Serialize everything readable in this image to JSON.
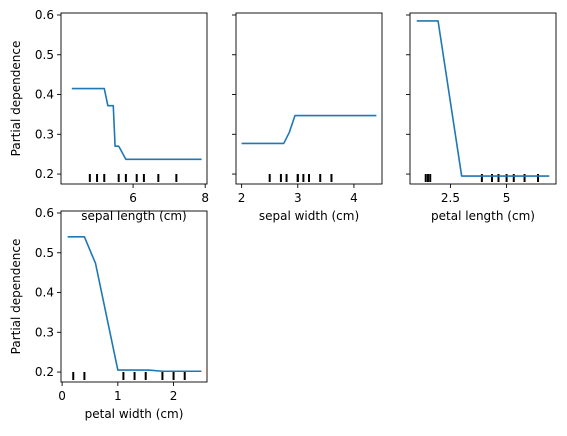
{
  "figure": {
    "line_color": "#1f77b4",
    "axis_color": "#000000",
    "background": "#ffffff"
  },
  "chart_data": [
    {
      "type": "line",
      "xlabel": "sepal length (cm)",
      "ylabel": "Partial dependence",
      "xlim": [
        4.0,
        8.05
      ],
      "ylim": [
        0.175,
        0.605
      ],
      "xticks": [
        6,
        8
      ],
      "yticks": [
        0.2,
        0.3,
        0.4,
        0.5,
        0.6
      ],
      "show_ylabel": true,
      "show_yticklabels": true,
      "x": [
        4.3,
        5.2,
        5.3,
        5.45,
        5.5,
        5.6,
        5.65,
        5.8,
        7.9
      ],
      "y": [
        0.415,
        0.415,
        0.372,
        0.372,
        0.27,
        0.27,
        0.262,
        0.237,
        0.237
      ],
      "deciles": [
        4.8,
        5.0,
        5.2,
        5.6,
        5.8,
        6.1,
        6.3,
        6.7,
        7.2
      ]
    },
    {
      "type": "line",
      "xlabel": "sepal width (cm)",
      "ylabel": "",
      "xlim": [
        1.9,
        4.5
      ],
      "ylim": [
        0.175,
        0.605
      ],
      "xticks": [
        2,
        3,
        4
      ],
      "yticks": [
        0.2,
        0.3,
        0.4,
        0.5,
        0.6
      ],
      "show_ylabel": false,
      "show_yticklabels": false,
      "x": [
        2.0,
        2.75,
        2.85,
        2.95,
        4.4
      ],
      "y": [
        0.277,
        0.277,
        0.305,
        0.347,
        0.347
      ],
      "deciles": [
        2.5,
        2.7,
        2.8,
        3.0,
        3.0,
        3.1,
        3.2,
        3.4,
        3.6
      ]
    },
    {
      "type": "line",
      "xlabel": "petal length (cm)",
      "ylabel": "",
      "xlim": [
        0.7,
        7.2
      ],
      "ylim": [
        0.175,
        0.605
      ],
      "xticks": [
        2.5,
        5.0
      ],
      "yticks": [
        0.2,
        0.3,
        0.4,
        0.5,
        0.6
      ],
      "show_ylabel": false,
      "show_yticklabels": false,
      "x": [
        1.0,
        1.95,
        3.0,
        6.9
      ],
      "y": [
        0.585,
        0.585,
        0.195,
        0.195
      ],
      "deciles": [
        1.4,
        1.5,
        1.6,
        3.9,
        4.35,
        4.64,
        5.0,
        5.32,
        5.8,
        6.4
      ]
    },
    {
      "type": "line",
      "xlabel": "petal width (cm)",
      "ylabel": "Partial dependence",
      "xlim": [
        -0.02,
        2.6
      ],
      "ylim": [
        0.175,
        0.605
      ],
      "xticks": [
        0,
        1,
        2
      ],
      "yticks": [
        0.2,
        0.3,
        0.4,
        0.5,
        0.6
      ],
      "show_ylabel": true,
      "show_yticklabels": true,
      "x": [
        0.1,
        0.4,
        0.6,
        1.0,
        1.55,
        1.8,
        2.5
      ],
      "y": [
        0.54,
        0.54,
        0.473,
        0.205,
        0.205,
        0.202,
        0.202
      ],
      "deciles": [
        0.2,
        0.4,
        1.1,
        1.3,
        1.5,
        1.8,
        2.0,
        2.2
      ]
    }
  ]
}
